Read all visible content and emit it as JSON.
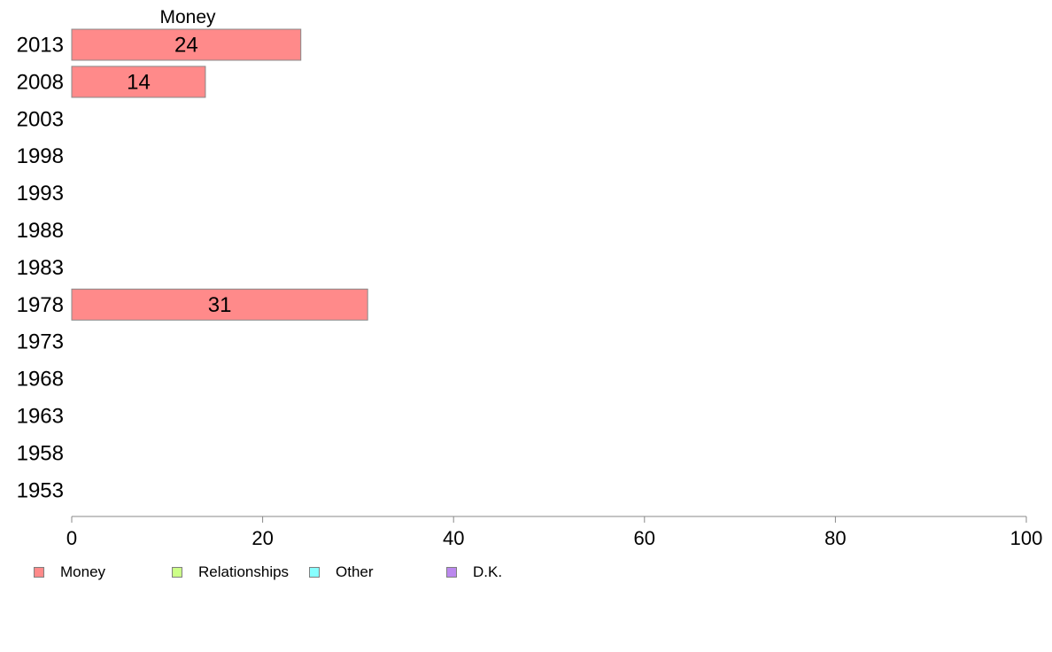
{
  "chart_data": {
    "type": "bar",
    "orientation": "horizontal",
    "categories": [
      "2013",
      "2008",
      "2003",
      "1998",
      "1993",
      "1988",
      "1983",
      "1978",
      "1973",
      "1968",
      "1963",
      "1958",
      "1953"
    ],
    "series": [
      {
        "name": "Money",
        "color": "#ff8a8a",
        "values": [
          24,
          14,
          null,
          null,
          null,
          null,
          null,
          31,
          null,
          null,
          null,
          null,
          null
        ]
      },
      {
        "name": "Relationships",
        "color": "#ccff88",
        "values": [
          null,
          null,
          null,
          null,
          null,
          null,
          null,
          null,
          null,
          null,
          null,
          null,
          null
        ]
      },
      {
        "name": "Other",
        "color": "#88ffff",
        "values": [
          null,
          null,
          null,
          null,
          null,
          null,
          null,
          null,
          null,
          null,
          null,
          null,
          null
        ]
      },
      {
        "name": "D.K.",
        "color": "#bb88ee",
        "values": [
          null,
          null,
          null,
          null,
          null,
          null,
          null,
          null,
          null,
          null,
          null,
          null,
          null
        ]
      }
    ],
    "header": "Money",
    "xlim": [
      0,
      100
    ],
    "xticks": [
      0,
      20,
      40,
      60,
      80,
      100
    ],
    "grid": false,
    "legend_position": "bottom-left"
  },
  "colors": {
    "axis": "#888888",
    "bar_border": "#888888"
  }
}
